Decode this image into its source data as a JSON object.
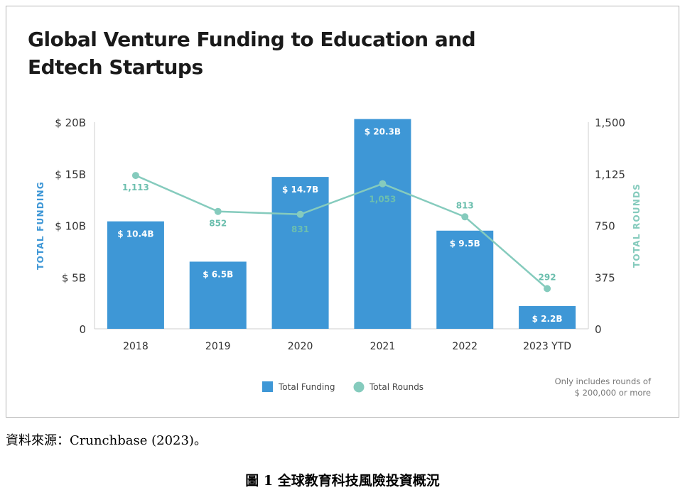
{
  "chart_data": {
    "type": "bar",
    "title": "Global Venture Funding to Education and Edtech Startups",
    "categories": [
      "2018",
      "2019",
      "2020",
      "2021",
      "2022",
      "2023 YTD"
    ],
    "series": [
      {
        "name": "Total Funding",
        "type": "bar",
        "axis": "left",
        "values": [
          10.4,
          6.5,
          14.7,
          20.3,
          9.5,
          2.2
        ],
        "labels": [
          "$ 10.4B",
          "$ 6.5B",
          "$ 14.7B",
          "$ 20.3B",
          "$ 9.5B",
          "$ 2.2B"
        ],
        "color": "#3e97d6"
      },
      {
        "name": "Total Rounds",
        "type": "line",
        "axis": "right",
        "values": [
          1113,
          852,
          831,
          1053,
          813,
          292
        ],
        "labels": [
          "1,113",
          "852",
          "831",
          "1,053",
          "813",
          "292"
        ],
        "color": "#85cbbd"
      }
    ],
    "y_left": {
      "label": "TOTAL FUNDING",
      "range": [
        0,
        20
      ],
      "ticks": [
        0,
        5,
        10,
        15,
        20
      ],
      "tick_labels": [
        "0",
        "$ 5B",
        "$ 10B",
        "$ 15B",
        "$ 20B"
      ]
    },
    "y_right": {
      "label": "TOTAL ROUNDS",
      "range": [
        0,
        1500
      ],
      "ticks": [
        0,
        375,
        750,
        1125,
        1500
      ],
      "tick_labels": [
        "0",
        "375",
        "750",
        "1,125",
        "1,500"
      ]
    },
    "legend": {
      "position": "bottom",
      "items": [
        "Total Funding",
        "Total Rounds"
      ]
    },
    "grid": false,
    "footnote": [
      "Only includes rounds of",
      "$ 200,000 or more"
    ]
  },
  "source": "資料來源：Crunchbase (2023)。",
  "caption": "圖 1  全球教育科技風險投資概況"
}
